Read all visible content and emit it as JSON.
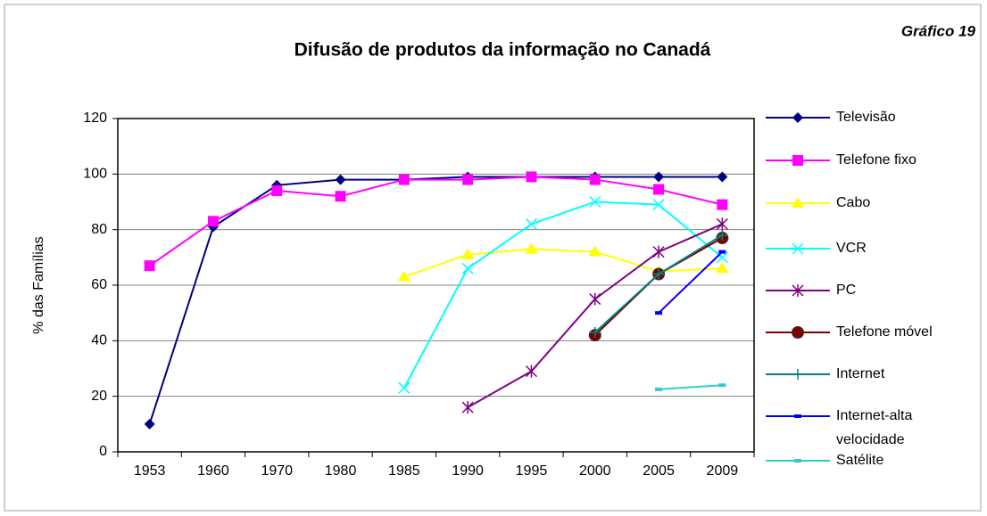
{
  "chart_data": {
    "type": "line",
    "title": "Difusão de produtos da informação no Canadá",
    "annotation": "Gráfico 19",
    "y_label": "% das Famílias",
    "categories": [
      "1953",
      "1960",
      "1970",
      "1980",
      "1985",
      "1990",
      "1995",
      "2000",
      "2005",
      "2009"
    ],
    "ylim": [
      0,
      120
    ],
    "yticks": [
      0,
      20,
      40,
      60,
      80,
      100,
      120
    ],
    "grid": true,
    "legend": "right",
    "series": [
      {
        "name": "Televisão",
        "color": "#000080",
        "marker": "diamond",
        "values": [
          10,
          81,
          96,
          98,
          98,
          99,
          99,
          99,
          99,
          99
        ]
      },
      {
        "name": "Telefone fixo",
        "color": "#ff00ff",
        "marker": "square",
        "values": [
          67,
          83,
          94,
          92,
          98,
          98,
          99,
          98,
          94.5,
          89
        ]
      },
      {
        "name": "Cabo",
        "color": "#ffff00",
        "marker": "triangle",
        "values": [
          null,
          null,
          null,
          null,
          63,
          71,
          73,
          72,
          65,
          66
        ]
      },
      {
        "name": "VCR",
        "color": "#00ffff",
        "marker": "x",
        "values": [
          null,
          null,
          null,
          null,
          23,
          66,
          82,
          90,
          89,
          70
        ]
      },
      {
        "name": "PC",
        "color": "#800080",
        "marker": "star",
        "values": [
          null,
          null,
          null,
          null,
          null,
          16,
          29,
          55,
          72,
          82
        ]
      },
      {
        "name": "Telefone móvel",
        "color": "#800000",
        "marker": "circle",
        "values": [
          null,
          null,
          null,
          null,
          null,
          null,
          null,
          42,
          64,
          77
        ]
      },
      {
        "name": "Internet",
        "color": "#008080",
        "marker": "plus",
        "values": [
          null,
          null,
          null,
          null,
          null,
          null,
          null,
          43,
          64,
          78
        ]
      },
      {
        "name": "Internet-alta velocidade",
        "color": "#0000ff",
        "marker": "dash",
        "values": [
          null,
          null,
          null,
          null,
          null,
          null,
          null,
          null,
          50,
          72
        ]
      },
      {
        "name": "Satélite",
        "color": "#33cccc",
        "marker": "dash",
        "values": [
          null,
          null,
          null,
          null,
          null,
          null,
          null,
          null,
          22.5,
          24
        ]
      }
    ]
  }
}
